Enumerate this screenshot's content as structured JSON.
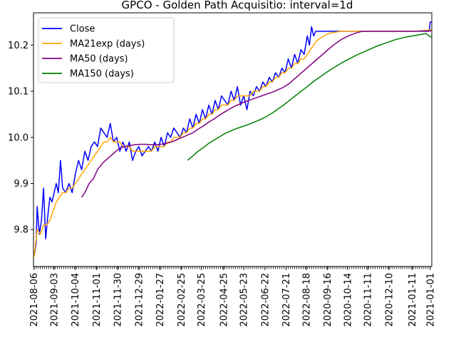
{
  "chart_data": {
    "type": "line",
    "title": "GPCO - Golden Path Acquisitio: interval=1d",
    "xlabel": "",
    "ylabel": "",
    "ylim": [
      9.72,
      10.27
    ],
    "yticks": [
      9.8,
      9.9,
      10.0,
      10.1,
      10.2
    ],
    "ytick_labels": [
      "9.8",
      "9.9",
      "10.0",
      "10.1",
      "10.2"
    ],
    "x_tick_labels": [
      "2021-08-06",
      "2021-09-03",
      "2021-10-04",
      "2021-11-01",
      "2021-11-30",
      "2021-12-29",
      "2022-01-27",
      "2022-02-25",
      "2022-03-25",
      "2022-04-25",
      "2022-05-23",
      "2022-06-22",
      "2022-07-21",
      "2022-08-18",
      "2020-09-16",
      "2020-10-14",
      "2020-11-11",
      "2020-12-10",
      "2021-01-11",
      "2021-01-01"
    ],
    "x_tick_index": [
      0,
      19,
      39,
      59,
      79,
      99,
      119,
      139,
      158,
      179,
      198,
      218,
      238,
      257,
      277,
      296,
      315,
      335,
      357,
      374
    ],
    "n_points": 376,
    "legend_position": "upper-left",
    "grid": false,
    "series": [
      {
        "name": "Close",
        "color": "#0000ff",
        "points": [
          [
            0,
            9.74
          ],
          [
            2,
            9.77
          ],
          [
            3,
            9.85
          ],
          [
            5,
            9.79
          ],
          [
            7,
            9.82
          ],
          [
            9,
            9.89
          ],
          [
            11,
            9.78
          ],
          [
            13,
            9.83
          ],
          [
            15,
            9.87
          ],
          [
            17,
            9.86
          ],
          [
            19,
            9.88
          ],
          [
            21,
            9.9
          ],
          [
            23,
            9.88
          ],
          [
            25,
            9.95
          ],
          [
            27,
            9.89
          ],
          [
            30,
            9.88
          ],
          [
            33,
            9.9
          ],
          [
            36,
            9.88
          ],
          [
            39,
            9.92
          ],
          [
            42,
            9.95
          ],
          [
            45,
            9.93
          ],
          [
            48,
            9.97
          ],
          [
            51,
            9.95
          ],
          [
            54,
            9.98
          ],
          [
            57,
            9.99
          ],
          [
            60,
            9.98
          ],
          [
            63,
            10.02
          ],
          [
            66,
            10.01
          ],
          [
            69,
            10.0
          ],
          [
            72,
            10.03
          ],
          [
            75,
            9.99
          ],
          [
            78,
            10.0
          ],
          [
            81,
            9.97
          ],
          [
            84,
            9.99
          ],
          [
            87,
            9.97
          ],
          [
            90,
            9.99
          ],
          [
            93,
            9.95
          ],
          [
            96,
            9.97
          ],
          [
            99,
            9.98
          ],
          [
            102,
            9.96
          ],
          [
            105,
            9.97
          ],
          [
            108,
            9.98
          ],
          [
            111,
            9.97
          ],
          [
            114,
            9.99
          ],
          [
            117,
            9.97
          ],
          [
            120,
            10.0
          ],
          [
            123,
            9.98
          ],
          [
            126,
            10.01
          ],
          [
            129,
            10.0
          ],
          [
            132,
            10.02
          ],
          [
            135,
            10.01
          ],
          [
            138,
            10.0
          ],
          [
            141,
            10.02
          ],
          [
            144,
            10.01
          ],
          [
            147,
            10.04
          ],
          [
            150,
            10.02
          ],
          [
            153,
            10.05
          ],
          [
            156,
            10.03
          ],
          [
            159,
            10.06
          ],
          [
            162,
            10.04
          ],
          [
            165,
            10.07
          ],
          [
            168,
            10.05
          ],
          [
            171,
            10.08
          ],
          [
            174,
            10.06
          ],
          [
            177,
            10.09
          ],
          [
            180,
            10.08
          ],
          [
            183,
            10.07
          ],
          [
            186,
            10.1
          ],
          [
            189,
            10.08
          ],
          [
            192,
            10.11
          ],
          [
            195,
            10.07
          ],
          [
            198,
            10.09
          ],
          [
            201,
            10.06
          ],
          [
            204,
            10.1
          ],
          [
            207,
            10.09
          ],
          [
            210,
            10.11
          ],
          [
            213,
            10.1
          ],
          [
            216,
            10.12
          ],
          [
            219,
            10.11
          ],
          [
            222,
            10.13
          ],
          [
            225,
            10.12
          ],
          [
            228,
            10.14
          ],
          [
            231,
            10.13
          ],
          [
            234,
            10.15
          ],
          [
            237,
            10.14
          ],
          [
            240,
            10.17
          ],
          [
            243,
            10.15
          ],
          [
            246,
            10.18
          ],
          [
            249,
            10.16
          ],
          [
            252,
            10.19
          ],
          [
            255,
            10.18
          ],
          [
            258,
            10.22
          ],
          [
            260,
            10.2
          ],
          [
            262,
            10.24
          ],
          [
            264,
            10.22
          ],
          [
            266,
            10.23
          ],
          [
            280,
            10.23
          ],
          [
            300,
            10.23
          ],
          [
            330,
            10.23
          ],
          [
            360,
            10.23
          ],
          [
            373,
            10.23
          ],
          [
            374,
            10.25
          ],
          [
            375,
            10.25
          ]
        ]
      },
      {
        "name": "MA21exp (days)",
        "color": "#ffa500",
        "points": [
          [
            0,
            9.74
          ],
          [
            3,
            9.8
          ],
          [
            6,
            9.79
          ],
          [
            9,
            9.81
          ],
          [
            12,
            9.81
          ],
          [
            15,
            9.82
          ],
          [
            18,
            9.84
          ],
          [
            21,
            9.86
          ],
          [
            24,
            9.87
          ],
          [
            27,
            9.88
          ],
          [
            30,
            9.88
          ],
          [
            33,
            9.89
          ],
          [
            36,
            9.89
          ],
          [
            39,
            9.9
          ],
          [
            42,
            9.91
          ],
          [
            45,
            9.92
          ],
          [
            48,
            9.93
          ],
          [
            51,
            9.94
          ],
          [
            54,
            9.95
          ],
          [
            57,
            9.96
          ],
          [
            60,
            9.97
          ],
          [
            63,
            9.98
          ],
          [
            66,
            9.99
          ],
          [
            69,
            9.99
          ],
          [
            72,
            10.0
          ],
          [
            75,
            9.99
          ],
          [
            78,
            9.99
          ],
          [
            81,
            9.99
          ],
          [
            84,
            9.98
          ],
          [
            87,
            9.98
          ],
          [
            90,
            9.98
          ],
          [
            93,
            9.97
          ],
          [
            96,
            9.97
          ],
          [
            99,
            9.97
          ],
          [
            102,
            9.97
          ],
          [
            105,
            9.97
          ],
          [
            108,
            9.97
          ],
          [
            111,
            9.97
          ],
          [
            114,
            9.98
          ],
          [
            117,
            9.98
          ],
          [
            120,
            9.98
          ],
          [
            123,
            9.98
          ],
          [
            126,
            9.99
          ],
          [
            129,
            9.99
          ],
          [
            132,
            10.0
          ],
          [
            135,
            10.0
          ],
          [
            138,
            10.0
          ],
          [
            141,
            10.01
          ],
          [
            144,
            10.01
          ],
          [
            147,
            10.02
          ],
          [
            150,
            10.02
          ],
          [
            153,
            10.03
          ],
          [
            156,
            10.03
          ],
          [
            159,
            10.04
          ],
          [
            162,
            10.04
          ],
          [
            165,
            10.05
          ],
          [
            168,
            10.05
          ],
          [
            171,
            10.06
          ],
          [
            174,
            10.06
          ],
          [
            177,
            10.07
          ],
          [
            180,
            10.07
          ],
          [
            183,
            10.07
          ],
          [
            186,
            10.08
          ],
          [
            189,
            10.08
          ],
          [
            192,
            10.09
          ],
          [
            195,
            10.09
          ],
          [
            198,
            10.09
          ],
          [
            201,
            10.09
          ],
          [
            204,
            10.09
          ],
          [
            207,
            10.1
          ],
          [
            210,
            10.1
          ],
          [
            213,
            10.1
          ],
          [
            216,
            10.11
          ],
          [
            219,
            10.11
          ],
          [
            222,
            10.12
          ],
          [
            225,
            10.12
          ],
          [
            228,
            10.13
          ],
          [
            231,
            10.13
          ],
          [
            234,
            10.14
          ],
          [
            237,
            10.14
          ],
          [
            240,
            10.15
          ],
          [
            243,
            10.15
          ],
          [
            246,
            10.16
          ],
          [
            249,
            10.16
          ],
          [
            252,
            10.17
          ],
          [
            255,
            10.17
          ],
          [
            258,
            10.18
          ],
          [
            261,
            10.19
          ],
          [
            264,
            10.2
          ],
          [
            267,
            10.21
          ],
          [
            270,
            10.215
          ],
          [
            274,
            10.22
          ],
          [
            278,
            10.225
          ],
          [
            284,
            10.228
          ],
          [
            290,
            10.23
          ],
          [
            300,
            10.23
          ],
          [
            330,
            10.23
          ],
          [
            360,
            10.23
          ],
          [
            375,
            10.233
          ]
        ]
      },
      {
        "name": "MA50 (days)",
        "color": "#800080",
        "points": [
          [
            45,
            9.87
          ],
          [
            48,
            9.88
          ],
          [
            52,
            9.9
          ],
          [
            56,
            9.91
          ],
          [
            60,
            9.93
          ],
          [
            65,
            9.945
          ],
          [
            70,
            9.955
          ],
          [
            75,
            9.965
          ],
          [
            80,
            9.975
          ],
          [
            85,
            9.98
          ],
          [
            90,
            9.982
          ],
          [
            95,
            9.984
          ],
          [
            100,
            9.985
          ],
          [
            105,
            9.985
          ],
          [
            110,
            9.984
          ],
          [
            115,
            9.984
          ],
          [
            120,
            9.985
          ],
          [
            125,
            9.987
          ],
          [
            130,
            9.99
          ],
          [
            135,
            9.995
          ],
          [
            140,
            10.0
          ],
          [
            145,
            10.005
          ],
          [
            150,
            10.01
          ],
          [
            155,
            10.018
          ],
          [
            160,
            10.025
          ],
          [
            165,
            10.033
          ],
          [
            170,
            10.04
          ],
          [
            175,
            10.048
          ],
          [
            180,
            10.055
          ],
          [
            185,
            10.062
          ],
          [
            190,
            10.068
          ],
          [
            195,
            10.073
          ],
          [
            200,
            10.078
          ],
          [
            205,
            10.082
          ],
          [
            210,
            10.086
          ],
          [
            215,
            10.09
          ],
          [
            220,
            10.094
          ],
          [
            225,
            10.098
          ],
          [
            230,
            10.103
          ],
          [
            235,
            10.108
          ],
          [
            240,
            10.115
          ],
          [
            245,
            10.125
          ],
          [
            250,
            10.135
          ],
          [
            255,
            10.145
          ],
          [
            260,
            10.155
          ],
          [
            265,
            10.165
          ],
          [
            270,
            10.175
          ],
          [
            275,
            10.185
          ],
          [
            280,
            10.195
          ],
          [
            285,
            10.204
          ],
          [
            290,
            10.212
          ],
          [
            295,
            10.218
          ],
          [
            300,
            10.223
          ],
          [
            305,
            10.227
          ],
          [
            310,
            10.23
          ],
          [
            320,
            10.23
          ],
          [
            340,
            10.23
          ],
          [
            360,
            10.23
          ],
          [
            375,
            10.231
          ]
        ]
      },
      {
        "name": "MA150 (days)",
        "color": "#008000",
        "points": [
          [
            145,
            9.95
          ],
          [
            150,
            9.96
          ],
          [
            155,
            9.97
          ],
          [
            160,
            9.978
          ],
          [
            165,
            9.987
          ],
          [
            170,
            9.994
          ],
          [
            175,
            10.001
          ],
          [
            180,
            10.008
          ],
          [
            185,
            10.013
          ],
          [
            190,
            10.018
          ],
          [
            195,
            10.022
          ],
          [
            200,
            10.026
          ],
          [
            205,
            10.03
          ],
          [
            210,
            10.035
          ],
          [
            215,
            10.04
          ],
          [
            220,
            10.046
          ],
          [
            225,
            10.053
          ],
          [
            230,
            10.061
          ],
          [
            235,
            10.069
          ],
          [
            240,
            10.078
          ],
          [
            245,
            10.087
          ],
          [
            250,
            10.096
          ],
          [
            255,
            10.105
          ],
          [
            260,
            10.114
          ],
          [
            265,
            10.123
          ],
          [
            270,
            10.131
          ],
          [
            275,
            10.139
          ],
          [
            280,
            10.147
          ],
          [
            285,
            10.154
          ],
          [
            290,
            10.161
          ],
          [
            295,
            10.167
          ],
          [
            300,
            10.173
          ],
          [
            305,
            10.179
          ],
          [
            310,
            10.184
          ],
          [
            315,
            10.189
          ],
          [
            320,
            10.194
          ],
          [
            325,
            10.199
          ],
          [
            330,
            10.203
          ],
          [
            335,
            10.207
          ],
          [
            340,
            10.211
          ],
          [
            345,
            10.214
          ],
          [
            350,
            10.217
          ],
          [
            355,
            10.219
          ],
          [
            360,
            10.221
          ],
          [
            365,
            10.223
          ],
          [
            370,
            10.225
          ],
          [
            375,
            10.217
          ]
        ]
      }
    ]
  }
}
